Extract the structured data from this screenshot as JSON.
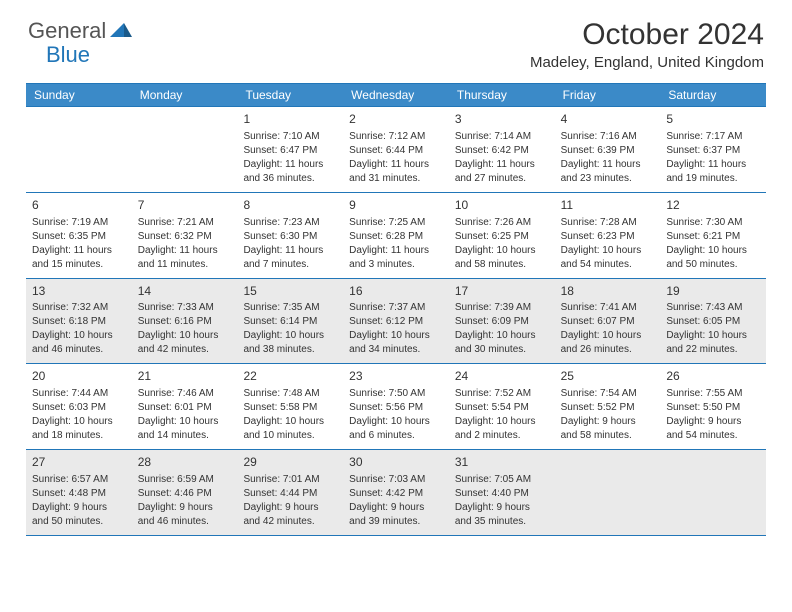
{
  "logo": {
    "text1": "General",
    "text2": "Blue"
  },
  "title": "October 2024",
  "location": "Madeley, England, United Kingdom",
  "colors": {
    "header_bg": "#3b8ac8",
    "border": "#2176b8",
    "shaded_bg": "#eaeaea",
    "text": "#333333",
    "logo_blue": "#2176b8",
    "logo_gray": "#555555"
  },
  "day_names": [
    "Sunday",
    "Monday",
    "Tuesday",
    "Wednesday",
    "Thursday",
    "Friday",
    "Saturday"
  ],
  "weeks": [
    {
      "shaded": false,
      "days": [
        {
          "num": "",
          "sunrise": "",
          "sunset": "",
          "daylight": ""
        },
        {
          "num": "",
          "sunrise": "",
          "sunset": "",
          "daylight": ""
        },
        {
          "num": "1",
          "sunrise": "Sunrise: 7:10 AM",
          "sunset": "Sunset: 6:47 PM",
          "daylight": "Daylight: 11 hours and 36 minutes."
        },
        {
          "num": "2",
          "sunrise": "Sunrise: 7:12 AM",
          "sunset": "Sunset: 6:44 PM",
          "daylight": "Daylight: 11 hours and 31 minutes."
        },
        {
          "num": "3",
          "sunrise": "Sunrise: 7:14 AM",
          "sunset": "Sunset: 6:42 PM",
          "daylight": "Daylight: 11 hours and 27 minutes."
        },
        {
          "num": "4",
          "sunrise": "Sunrise: 7:16 AM",
          "sunset": "Sunset: 6:39 PM",
          "daylight": "Daylight: 11 hours and 23 minutes."
        },
        {
          "num": "5",
          "sunrise": "Sunrise: 7:17 AM",
          "sunset": "Sunset: 6:37 PM",
          "daylight": "Daylight: 11 hours and 19 minutes."
        }
      ]
    },
    {
      "shaded": false,
      "days": [
        {
          "num": "6",
          "sunrise": "Sunrise: 7:19 AM",
          "sunset": "Sunset: 6:35 PM",
          "daylight": "Daylight: 11 hours and 15 minutes."
        },
        {
          "num": "7",
          "sunrise": "Sunrise: 7:21 AM",
          "sunset": "Sunset: 6:32 PM",
          "daylight": "Daylight: 11 hours and 11 minutes."
        },
        {
          "num": "8",
          "sunrise": "Sunrise: 7:23 AM",
          "sunset": "Sunset: 6:30 PM",
          "daylight": "Daylight: 11 hours and 7 minutes."
        },
        {
          "num": "9",
          "sunrise": "Sunrise: 7:25 AM",
          "sunset": "Sunset: 6:28 PM",
          "daylight": "Daylight: 11 hours and 3 minutes."
        },
        {
          "num": "10",
          "sunrise": "Sunrise: 7:26 AM",
          "sunset": "Sunset: 6:25 PM",
          "daylight": "Daylight: 10 hours and 58 minutes."
        },
        {
          "num": "11",
          "sunrise": "Sunrise: 7:28 AM",
          "sunset": "Sunset: 6:23 PM",
          "daylight": "Daylight: 10 hours and 54 minutes."
        },
        {
          "num": "12",
          "sunrise": "Sunrise: 7:30 AM",
          "sunset": "Sunset: 6:21 PM",
          "daylight": "Daylight: 10 hours and 50 minutes."
        }
      ]
    },
    {
      "shaded": true,
      "days": [
        {
          "num": "13",
          "sunrise": "Sunrise: 7:32 AM",
          "sunset": "Sunset: 6:18 PM",
          "daylight": "Daylight: 10 hours and 46 minutes."
        },
        {
          "num": "14",
          "sunrise": "Sunrise: 7:33 AM",
          "sunset": "Sunset: 6:16 PM",
          "daylight": "Daylight: 10 hours and 42 minutes."
        },
        {
          "num": "15",
          "sunrise": "Sunrise: 7:35 AM",
          "sunset": "Sunset: 6:14 PM",
          "daylight": "Daylight: 10 hours and 38 minutes."
        },
        {
          "num": "16",
          "sunrise": "Sunrise: 7:37 AM",
          "sunset": "Sunset: 6:12 PM",
          "daylight": "Daylight: 10 hours and 34 minutes."
        },
        {
          "num": "17",
          "sunrise": "Sunrise: 7:39 AM",
          "sunset": "Sunset: 6:09 PM",
          "daylight": "Daylight: 10 hours and 30 minutes."
        },
        {
          "num": "18",
          "sunrise": "Sunrise: 7:41 AM",
          "sunset": "Sunset: 6:07 PM",
          "daylight": "Daylight: 10 hours and 26 minutes."
        },
        {
          "num": "19",
          "sunrise": "Sunrise: 7:43 AM",
          "sunset": "Sunset: 6:05 PM",
          "daylight": "Daylight: 10 hours and 22 minutes."
        }
      ]
    },
    {
      "shaded": false,
      "days": [
        {
          "num": "20",
          "sunrise": "Sunrise: 7:44 AM",
          "sunset": "Sunset: 6:03 PM",
          "daylight": "Daylight: 10 hours and 18 minutes."
        },
        {
          "num": "21",
          "sunrise": "Sunrise: 7:46 AM",
          "sunset": "Sunset: 6:01 PM",
          "daylight": "Daylight: 10 hours and 14 minutes."
        },
        {
          "num": "22",
          "sunrise": "Sunrise: 7:48 AM",
          "sunset": "Sunset: 5:58 PM",
          "daylight": "Daylight: 10 hours and 10 minutes."
        },
        {
          "num": "23",
          "sunrise": "Sunrise: 7:50 AM",
          "sunset": "Sunset: 5:56 PM",
          "daylight": "Daylight: 10 hours and 6 minutes."
        },
        {
          "num": "24",
          "sunrise": "Sunrise: 7:52 AM",
          "sunset": "Sunset: 5:54 PM",
          "daylight": "Daylight: 10 hours and 2 minutes."
        },
        {
          "num": "25",
          "sunrise": "Sunrise: 7:54 AM",
          "sunset": "Sunset: 5:52 PM",
          "daylight": "Daylight: 9 hours and 58 minutes."
        },
        {
          "num": "26",
          "sunrise": "Sunrise: 7:55 AM",
          "sunset": "Sunset: 5:50 PM",
          "daylight": "Daylight: 9 hours and 54 minutes."
        }
      ]
    },
    {
      "shaded": true,
      "days": [
        {
          "num": "27",
          "sunrise": "Sunrise: 6:57 AM",
          "sunset": "Sunset: 4:48 PM",
          "daylight": "Daylight: 9 hours and 50 minutes."
        },
        {
          "num": "28",
          "sunrise": "Sunrise: 6:59 AM",
          "sunset": "Sunset: 4:46 PM",
          "daylight": "Daylight: 9 hours and 46 minutes."
        },
        {
          "num": "29",
          "sunrise": "Sunrise: 7:01 AM",
          "sunset": "Sunset: 4:44 PM",
          "daylight": "Daylight: 9 hours and 42 minutes."
        },
        {
          "num": "30",
          "sunrise": "Sunrise: 7:03 AM",
          "sunset": "Sunset: 4:42 PM",
          "daylight": "Daylight: 9 hours and 39 minutes."
        },
        {
          "num": "31",
          "sunrise": "Sunrise: 7:05 AM",
          "sunset": "Sunset: 4:40 PM",
          "daylight": "Daylight: 9 hours and 35 minutes."
        },
        {
          "num": "",
          "sunrise": "",
          "sunset": "",
          "daylight": ""
        },
        {
          "num": "",
          "sunrise": "",
          "sunset": "",
          "daylight": ""
        }
      ]
    }
  ]
}
